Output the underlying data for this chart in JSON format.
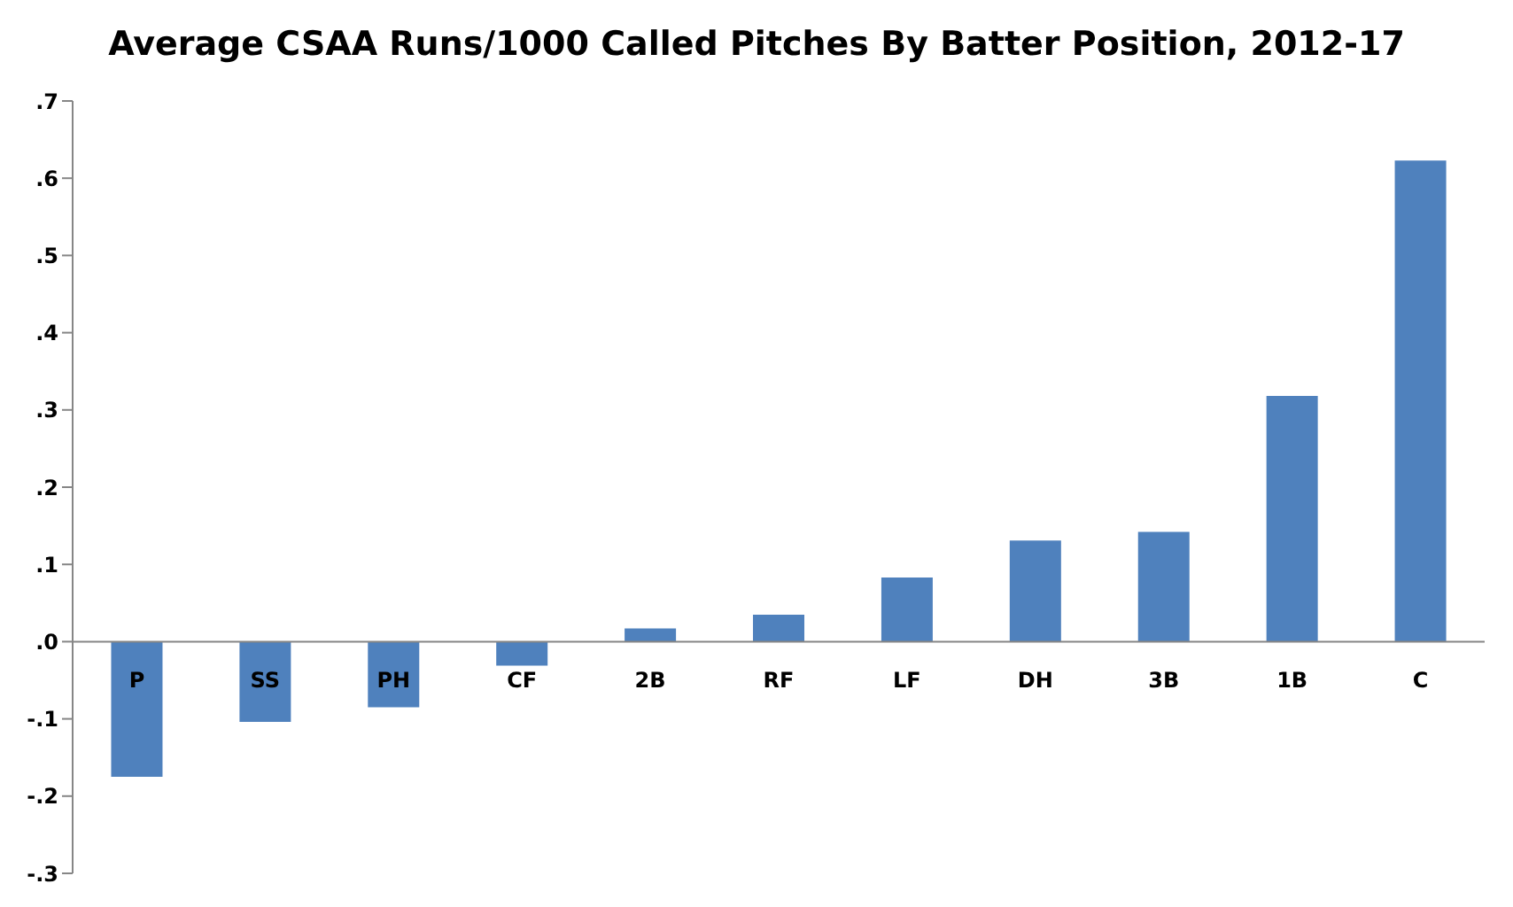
{
  "chart_data": {
    "type": "bar",
    "title": "Average CSAA Runs/1000 Called Pitches By Batter Position, 2012-17",
    "categories": [
      "P",
      "SS",
      "PH",
      "CF",
      "2B",
      "RF",
      "LF",
      "DH",
      "3B",
      "1B",
      "C"
    ],
    "values": [
      -0.175,
      -0.104,
      -0.085,
      -0.031,
      0.017,
      0.035,
      0.083,
      0.131,
      0.142,
      0.318,
      0.623
    ],
    "color": "#4f81bd",
    "ylim": [
      -0.3,
      0.7
    ],
    "yticks": [
      {
        "value": -0.3,
        "label": "-.3"
      },
      {
        "value": -0.2,
        "label": "-.2"
      },
      {
        "value": -0.1,
        "label": "-.1"
      },
      {
        "value": 0,
        "label": ".0"
      },
      {
        "value": 0.1,
        "label": ".1"
      },
      {
        "value": 0.2,
        "label": ".2"
      },
      {
        "value": 0.3,
        "label": ".3"
      },
      {
        "value": 0.4,
        "label": ".4"
      },
      {
        "value": 0.5,
        "label": ".5"
      },
      {
        "value": 0.6,
        "label": ".6"
      },
      {
        "value": 0.7,
        "label": ".7"
      }
    ],
    "grid": false,
    "legend": false
  }
}
